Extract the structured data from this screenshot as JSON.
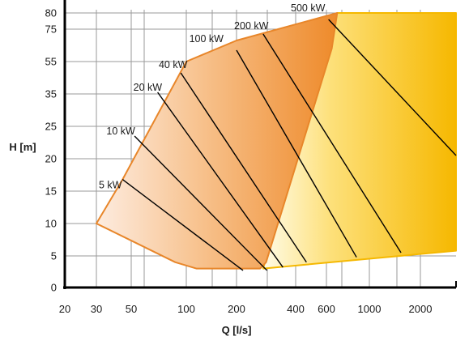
{
  "chart_data": {
    "type": "area",
    "title": "",
    "xlabel": "Q [l/s]",
    "ylabel": "H [m]",
    "x_ticks": [
      "20",
      "30",
      "50",
      "100",
      "200",
      "400",
      "600",
      "1000",
      "2000"
    ],
    "y_ticks": [
      "0",
      "5",
      "10",
      "15",
      "20",
      "25",
      "35",
      "55",
      "75",
      "80"
    ],
    "grid": true,
    "colors": {
      "grid": "#9a9a9a",
      "axis": "#000000",
      "region_a_edge": "#e8862a",
      "region_a_light": "#fde8d6",
      "region_a_dark": "#ee8a2a",
      "region_b_edge": "#f5b800",
      "region_b_light": "#fff8d8",
      "region_b_dark": "#f6b800",
      "power_line": "#000000"
    },
    "regions": [
      {
        "id": "region_a",
        "points": [
          [
            30,
            10
          ],
          [
            45,
            16.8
          ],
          [
            100,
            55
          ],
          [
            200,
            68
          ],
          [
            700,
            80
          ],
          [
            650,
            63
          ],
          [
            300,
            4
          ],
          [
            280,
            3
          ],
          [
            120,
            3
          ],
          [
            90,
            4
          ],
          [
            30,
            10
          ]
        ]
      },
      {
        "id": "region_b",
        "points": [
          [
            290,
            3
          ],
          [
            700,
            80
          ],
          [
            2600,
            80
          ],
          [
            2600,
            5.8
          ],
          [
            290,
            3
          ]
        ]
      }
    ],
    "power_lines": [
      {
        "label": "5 kW",
        "label_at": [
          38,
          15.2
        ],
        "from": [
          45,
          16.8
        ],
        "to": [
          222,
          2.7
        ]
      },
      {
        "label": "10 kW",
        "label_at": [
          44,
          23.5
        ],
        "from": [
          53,
          23.5
        ],
        "to": [
          303,
          2.7
        ]
      },
      {
        "label": "20 kW",
        "label_at": [
          65,
          36
        ],
        "from": [
          74,
          36
        ],
        "to": [
          357,
          3.2
        ]
      },
      {
        "label": "40 kW",
        "label_at": [
          88,
          50
        ],
        "from": [
          95,
          48
        ],
        "to": [
          470,
          4.0
        ]
      },
      {
        "label": "100 kW",
        "label_at": [
          140,
          66
        ],
        "from": [
          200,
          62
        ],
        "to": [
          880,
          4.8
        ]
      },
      {
        "label": "200 kW",
        "label_at": [
          250,
          74
        ],
        "from": [
          290,
          72
        ],
        "to": [
          1620,
          5.5
        ]
      },
      {
        "label": "500 kW",
        "label_at": [
          480,
          80
        ],
        "from": [
          620,
          78
        ],
        "to": [
          2600,
          20.5
        ]
      }
    ]
  }
}
